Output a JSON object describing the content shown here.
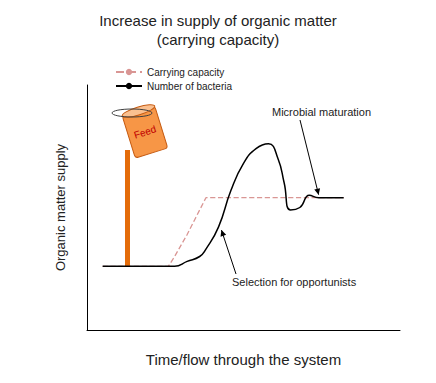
{
  "chart_data": {
    "type": "line",
    "title": "Increase in supply of organic matter\n(carrying capacity)",
    "x_label": "Time/flow through the system",
    "y_label": "Organic matter supply",
    "x": [
      5,
      26,
      28,
      32,
      36,
      38,
      42,
      46,
      50,
      54,
      58,
      61,
      63,
      65,
      68,
      71,
      74,
      82
    ],
    "series": [
      {
        "name": "Carrying capacity",
        "color": "#d99694",
        "line_style": "dashed",
        "values": [
          26,
          26,
          30,
          39,
          49,
          54,
          54,
          54,
          54,
          54,
          54,
          54,
          54,
          54,
          54,
          54,
          54,
          54
        ]
      },
      {
        "name": "Number of bacteria",
        "color": "#000000",
        "line_style": "solid",
        "values": [
          26,
          26,
          26,
          28,
          30,
          33,
          42,
          57,
          68,
          74,
          76,
          70,
          60,
          49,
          50,
          55,
          54,
          54
        ]
      }
    ],
    "xlim": [
      0,
      100
    ],
    "ylim": [
      0,
      100
    ],
    "grid": false,
    "tick_labels": false,
    "legend": "upper left",
    "annotations": [
      "Feed",
      "Microbial maturation",
      "Selection for opportunists"
    ]
  }
}
